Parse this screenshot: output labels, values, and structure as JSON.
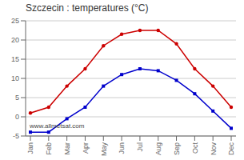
{
  "chart_data": {
    "type": "line",
    "title": "Szczecin : temperatures (°C)",
    "annotations": [
      "www.allmetsat.com"
    ],
    "categories": [
      "Jan",
      "Feb",
      "Mar",
      "Apr",
      "May",
      "Jun",
      "Jul",
      "Aug",
      "Sep",
      "Oct",
      "Nov",
      "Dec"
    ],
    "series": [
      {
        "color": "#cc0000",
        "marker": "circle",
        "line_style": "solid",
        "values": [
          1.0,
          2.5,
          8.0,
          12.5,
          18.5,
          21.5,
          22.5,
          22.5,
          19.0,
          12.5,
          8.0,
          2.5
        ]
      },
      {
        "color": "#0000cc",
        "marker": "square",
        "line_style": "solid",
        "values": [
          -4.0,
          -4.0,
          -0.5,
          2.5,
          8.0,
          11.0,
          12.5,
          12.0,
          9.5,
          6.0,
          1.5,
          -3.0
        ]
      }
    ],
    "ylim": [
      -5,
      25
    ],
    "yticks": [
      -5,
      0,
      5,
      10,
      15,
      20,
      25
    ],
    "grid": true
  }
}
